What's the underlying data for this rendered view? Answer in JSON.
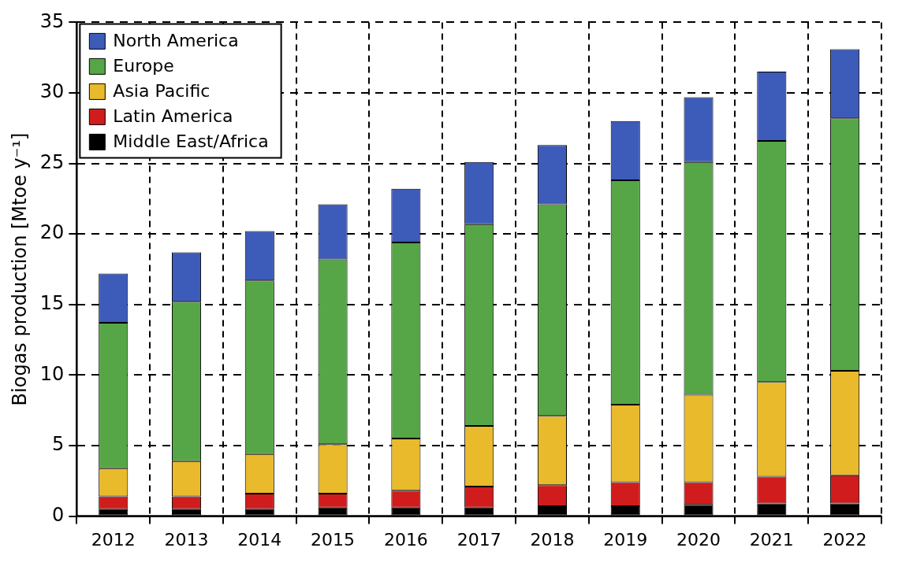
{
  "chart_data": {
    "type": "bar",
    "ylabel": "Biogas production [Mtoe y⁻¹]",
    "stacked": true,
    "categories": [
      "2012",
      "2013",
      "2014",
      "2015",
      "2016",
      "2017",
      "2018",
      "2019",
      "2020",
      "2021",
      "2022"
    ],
    "series": [
      {
        "name": "Middle East/Africa",
        "color": "#000000",
        "values": [
          0.5,
          0.5,
          0.5,
          0.6,
          0.6,
          0.6,
          0.7,
          0.7,
          0.8,
          0.9,
          0.9
        ]
      },
      {
        "name": "Latin America",
        "color": "#d01c1c",
        "values": [
          0.9,
          0.9,
          1.1,
          1.0,
          1.2,
          1.5,
          1.5,
          1.7,
          1.6,
          1.9,
          2.0
        ]
      },
      {
        "name": "Asia Pacific",
        "color": "#e8ba2c",
        "values": [
          2.0,
          2.5,
          2.8,
          3.5,
          3.7,
          4.3,
          4.9,
          5.5,
          6.2,
          6.7,
          7.4
        ]
      },
      {
        "name": "Europe",
        "color": "#56a546",
        "values": [
          10.3,
          11.3,
          12.3,
          13.1,
          13.9,
          14.3,
          15.0,
          15.9,
          16.5,
          17.1,
          17.9
        ]
      },
      {
        "name": "North America",
        "color": "#3d5bb8",
        "values": [
          3.5,
          3.5,
          3.5,
          3.9,
          3.8,
          4.4,
          4.2,
          4.2,
          4.6,
          4.9,
          4.9
        ]
      }
    ],
    "ylim": [
      0,
      35
    ],
    "yticks": [
      0,
      5,
      10,
      15,
      20,
      25,
      30,
      35
    ],
    "grid": true,
    "legend": "top left"
  }
}
